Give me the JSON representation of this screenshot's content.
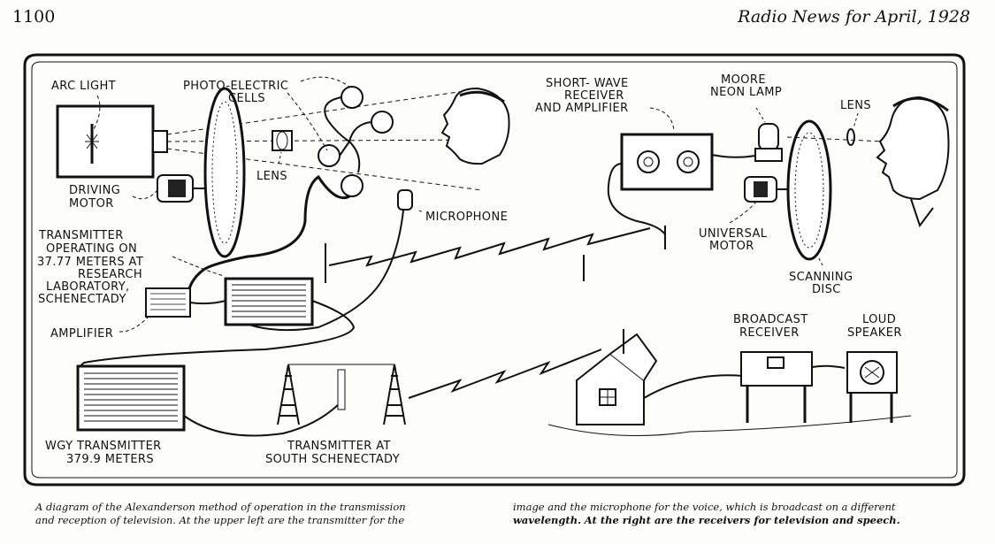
{
  "header": {
    "page_number": "1100",
    "journal": "Radio News for April, 1928"
  },
  "labels": {
    "arc_light": "ARC LIGHT",
    "photo_cells_1": "PHOTO-ELECTRIC",
    "photo_cells_2": "CELLS",
    "lens_left": "LENS",
    "driving_motor_1": "DRIVING",
    "driving_motor_2": "MOTOR",
    "microphone": "MICROPHONE",
    "transmitter_1": "TRANSMITTER",
    "transmitter_2": "OPERATING ON",
    "transmitter_3": "37.77 METERS AT",
    "transmitter_4": "RESEARCH",
    "transmitter_5": "LABORATORY,",
    "transmitter_6": "SCHENECTADY",
    "amplifier": "AMPLIFIER",
    "wgy_1": "WGY TRANSMITTER",
    "wgy_2": "379.9 METERS",
    "south_1": "TRANSMITTER AT",
    "south_2": "SOUTH SCHENECTADY",
    "shortwave_1": "SHORT- WAVE",
    "shortwave_2": "RECEIVER",
    "shortwave_3": "AND AMPLIFIER",
    "neon_1": "MOORE",
    "neon_2": "NEON LAMP",
    "lens_right": "LENS",
    "universal_1": "UNIVERSAL",
    "universal_2": "MOTOR",
    "scanning_1": "SCANNING",
    "scanning_2": "DISC",
    "broadcast_1": "BROADCAST",
    "broadcast_2": "RECEIVER",
    "loud_1": "LOUD",
    "loud_2": "SPEAKER"
  },
  "caption": {
    "left_line1": "A diagram of the Alexanderson method of operation in the transmission",
    "left_line2": "and reception of television.  At the upper left are the transmitter for the",
    "right_line1": "image and the microphone for the voice, which is broadcast on a different",
    "right_line2_a": "wavelength.",
    "right_line2_b": "At the right are the receivers for television and speech."
  }
}
